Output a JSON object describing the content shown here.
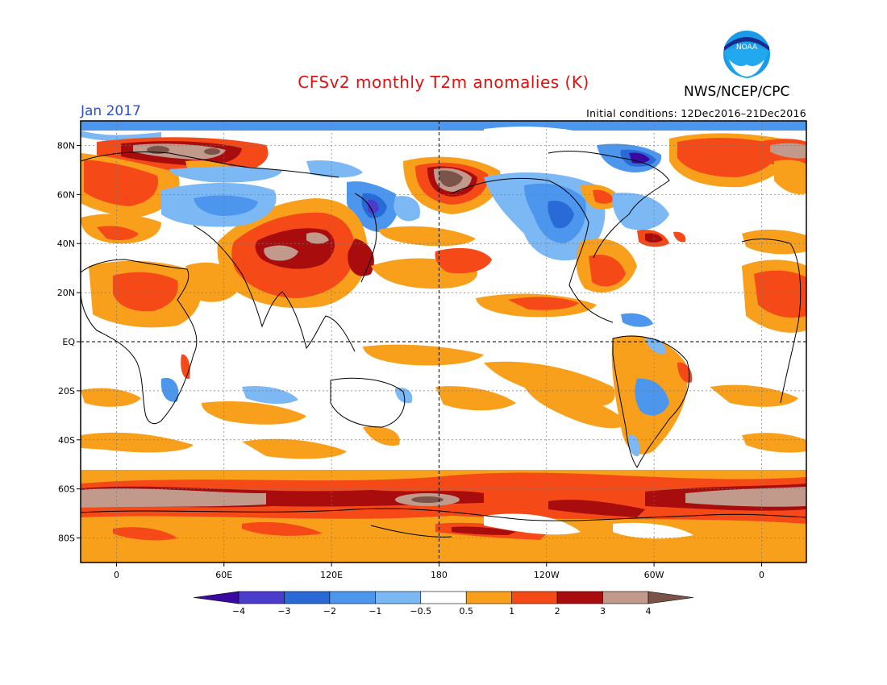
{
  "header": {
    "title": "CFSv2 monthly T2m anomalies (K)",
    "agency": "NWS/NCEP/CPC",
    "logo_text": "NOAA",
    "valid_month": "Jan 2017",
    "initial_conditions": "Initial conditions: 12Dec2016–21Dec2016"
  },
  "map": {
    "lat_labels": [
      "80N",
      "60N",
      "40N",
      "20N",
      "EQ",
      "20S",
      "40S",
      "60S",
      "80S"
    ],
    "lat_values": [
      80,
      60,
      40,
      20,
      0,
      -20,
      -40,
      -60,
      -80
    ],
    "lon_labels": [
      "0",
      "60E",
      "120E",
      "180",
      "120W",
      "60W",
      "0"
    ],
    "lon_values": [
      0,
      60,
      120,
      180,
      240,
      300,
      360
    ],
    "lon_range": [
      -20,
      385
    ],
    "lat_range": [
      -90,
      90
    ],
    "grid_line_style": "dotted",
    "highlighted_lines": [
      "EQ",
      "180"
    ]
  },
  "colorbar": {
    "bins": [
      {
        "from": "-inf",
        "to": -4,
        "color": "#3a0aa0"
      },
      {
        "from": -4,
        "to": -3,
        "color": "#4b3ccc"
      },
      {
        "from": -3,
        "to": -2,
        "color": "#2a6ad6"
      },
      {
        "from": -2,
        "to": -1,
        "color": "#4c96ee"
      },
      {
        "from": -1,
        "to": -0.5,
        "color": "#7cb8f4"
      },
      {
        "from": -0.5,
        "to": 0.5,
        "color": "#ffffff"
      },
      {
        "from": 0.5,
        "to": 1,
        "color": "#f8a01c"
      },
      {
        "from": 1,
        "to": 2,
        "color": "#f54a18"
      },
      {
        "from": 2,
        "to": 3,
        "color": "#a80c0c"
      },
      {
        "from": 3,
        "to": 4,
        "color": "#c29a8c"
      },
      {
        "from": 4,
        "to": "inf",
        "color": "#7a5448"
      }
    ],
    "tick_labels": [
      "−4",
      "−3",
      "−2",
      "−1",
      "−0.5",
      "0.5",
      "1",
      "2",
      "3",
      "4"
    ]
  }
}
